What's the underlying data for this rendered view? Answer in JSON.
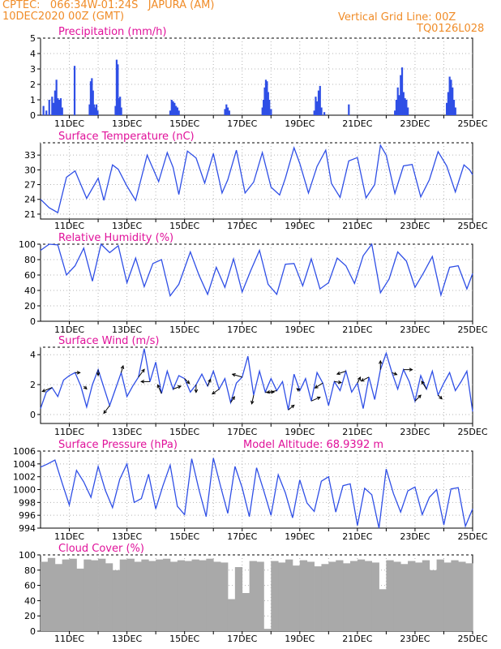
{
  "header": {
    "line1_left": "CPTEC:   066:34W-01:24S   JAPURA (AM)",
    "line2_left": "10DEC2020 00Z (GMT)",
    "line1_right": "Vertical Grid Line: 00Z",
    "line2_right": "TQ0126L028"
  },
  "colors": {
    "header": "#f08c28",
    "title": "#e0119a",
    "line": "#2f4fe6",
    "cloud": "#a9a9a9",
    "grid": "#b4b4b4",
    "arrow": "#000000"
  },
  "x_tick_labels": [
    "11DEC",
    "13DEC",
    "15DEC",
    "17DEC",
    "19DEC",
    "21DEC",
    "23DEC",
    "25DEC"
  ],
  "x_axis": {
    "start": "2020-12-10T00Z",
    "end": "2020-12-25T00Z"
  },
  "chart_data": [
    {
      "id": "precip",
      "type": "bar",
      "title": "Precipitation (mm/h)",
      "ylim": [
        0,
        5
      ],
      "yticks": [
        0,
        1,
        2,
        3,
        4,
        5
      ],
      "grid": true,
      "x": [
        10.1,
        10.2,
        10.3,
        10.4,
        10.45,
        10.5,
        10.55,
        10.6,
        10.65,
        10.7,
        10.75,
        11.18,
        11.7,
        11.74,
        11.78,
        11.82,
        11.86,
        11.9,
        11.94,
        11.98,
        12.6,
        12.64,
        12.68,
        12.72,
        12.76,
        12.8,
        14.5,
        14.55,
        14.6,
        14.65,
        14.7,
        14.75,
        14.8,
        16.4,
        16.45,
        16.5,
        16.55,
        17.7,
        17.74,
        17.78,
        17.82,
        17.86,
        17.9,
        17.94,
        18.0,
        19.5,
        19.55,
        19.6,
        19.65,
        19.7,
        19.75,
        19.85,
        20.7,
        22.3,
        22.35,
        22.4,
        22.45,
        22.5,
        22.55,
        22.6,
        22.65,
        22.7,
        22.75,
        24.1,
        24.15,
        24.2,
        24.25,
        24.3,
        24.35,
        24.4
      ],
      "values": [
        0.6,
        0.3,
        1.0,
        1.2,
        0.8,
        1.6,
        2.3,
        1.1,
        1.0,
        1.1,
        0.5,
        3.2,
        0.7,
        2.2,
        2.4,
        1.6,
        0.7,
        0.5,
        0.7,
        0.3,
        0.6,
        3.6,
        3.3,
        1.1,
        1.2,
        0.5,
        0.3,
        1.0,
        0.9,
        0.8,
        0.6,
        0.5,
        0.3,
        0.4,
        0.7,
        0.5,
        0.3,
        0.5,
        1.0,
        1.8,
        2.3,
        2.2,
        1.5,
        1.0,
        0.4,
        0.3,
        1.2,
        0.9,
        1.6,
        1.9,
        0.5,
        0.2,
        0.7,
        0.3,
        1.0,
        1.8,
        1.3,
        2.6,
        3.1,
        1.5,
        1.1,
        1.0,
        0.5,
        0.8,
        1.5,
        2.5,
        2.3,
        1.8,
        1.0,
        0.5
      ]
    },
    {
      "id": "temp",
      "type": "line",
      "title": "Surface Temperature (nC)",
      "ylim": [
        20,
        35.5
      ],
      "yticks": [
        21,
        24,
        27,
        30,
        33
      ],
      "grid": true,
      "x": [
        10.0,
        10.3,
        10.6,
        10.9,
        11.2,
        11.6,
        12.0,
        12.2,
        12.5,
        12.7,
        13.0,
        13.3,
        13.7,
        14.1,
        14.4,
        14.6,
        14.8,
        15.1,
        15.4,
        15.7,
        16.0,
        16.3,
        16.5,
        16.8,
        17.1,
        17.4,
        17.7,
        18.0,
        18.3,
        18.5,
        18.8,
        19.0,
        19.3,
        19.6,
        19.9,
        20.1,
        20.4,
        20.7,
        21.0,
        21.3,
        21.6,
        21.8,
        22.0,
        22.3,
        22.6,
        22.9,
        23.2,
        23.5,
        23.8,
        24.1,
        24.4,
        24.7,
        24.9,
        25.0
      ],
      "values": [
        24.0,
        22.3,
        21.3,
        28.5,
        29.8,
        24.2,
        28.3,
        23.8,
        31.0,
        30.1,
        26.7,
        23.8,
        33.0,
        27.6,
        33.5,
        30.5,
        25.0,
        33.8,
        32.4,
        27.3,
        33.3,
        25.3,
        28.0,
        34.0,
        25.3,
        27.5,
        33.5,
        26.5,
        24.9,
        28.3,
        34.5,
        31.3,
        25.3,
        30.7,
        34.0,
        27.2,
        24.4,
        31.8,
        32.5,
        24.3,
        27.0,
        35.0,
        33.0,
        25.2,
        30.8,
        31.1,
        24.5,
        28.0,
        33.7,
        30.8,
        25.5,
        31.0,
        30.0,
        29.0
      ]
    },
    {
      "id": "rh",
      "type": "line",
      "title": "Relative Humidity (%)",
      "ylim": [
        0,
        100
      ],
      "yticks": [
        0,
        20,
        40,
        60,
        80,
        100
      ],
      "grid": true,
      "x": [
        10.0,
        10.3,
        10.6,
        10.9,
        11.2,
        11.5,
        11.8,
        12.1,
        12.4,
        12.7,
        13.0,
        13.3,
        13.6,
        13.9,
        14.2,
        14.5,
        14.8,
        15.2,
        15.5,
        15.8,
        16.1,
        16.4,
        16.7,
        17.0,
        17.3,
        17.6,
        17.9,
        18.2,
        18.5,
        18.8,
        19.1,
        19.4,
        19.7,
        20.0,
        20.3,
        20.6,
        20.9,
        21.2,
        21.5,
        21.8,
        22.1,
        22.4,
        22.7,
        23.0,
        23.3,
        23.6,
        23.9,
        24.2,
        24.5,
        24.8,
        25.0
      ],
      "values": [
        92,
        100,
        99,
        60,
        72,
        95,
        52,
        100,
        89,
        98,
        50,
        82,
        45,
        75,
        80,
        33,
        48,
        90,
        60,
        35,
        70,
        44,
        81,
        38,
        66,
        92,
        48,
        35,
        74,
        75,
        46,
        81,
        42,
        50,
        82,
        72,
        49,
        85,
        100,
        37,
        55,
        90,
        78,
        44,
        63,
        84,
        34,
        70,
        72,
        42,
        62
      ]
    },
    {
      "id": "wind",
      "type": "line",
      "title": "Surface Wind (m/s)",
      "ylim": [
        -0.6,
        4.5
      ],
      "yticks": [
        0,
        2,
        4
      ],
      "grid": true,
      "x": [
        10.0,
        10.2,
        10.4,
        10.6,
        10.8,
        11.0,
        11.2,
        11.4,
        11.6,
        11.8,
        12.0,
        12.2,
        12.4,
        12.6,
        12.8,
        13.0,
        13.2,
        13.4,
        13.6,
        13.8,
        14.0,
        14.2,
        14.4,
        14.6,
        14.8,
        15.0,
        15.2,
        15.4,
        15.6,
        15.8,
        16.0,
        16.2,
        16.4,
        16.6,
        16.8,
        17.0,
        17.2,
        17.4,
        17.6,
        17.8,
        18.0,
        18.2,
        18.4,
        18.6,
        18.8,
        19.0,
        19.2,
        19.4,
        19.6,
        19.8,
        20.0,
        20.2,
        20.4,
        20.6,
        20.8,
        21.0,
        21.2,
        21.4,
        21.6,
        21.8,
        22.0,
        22.2,
        22.4,
        22.6,
        22.8,
        23.0,
        23.2,
        23.4,
        23.6,
        23.8,
        24.0,
        24.2,
        24.4,
        24.6,
        24.8,
        25.0
      ],
      "values": [
        0.4,
        1.5,
        1.8,
        1.2,
        2.3,
        2.6,
        2.8,
        1.9,
        0.5,
        2.0,
        3.0,
        1.8,
        0.6,
        1.7,
        2.8,
        1.2,
        1.9,
        2.5,
        4.4,
        2.2,
        3.5,
        1.4,
        2.9,
        1.7,
        2.6,
        2.4,
        1.5,
        2.0,
        2.7,
        1.9,
        2.9,
        1.7,
        2.4,
        0.8,
        2.1,
        2.5,
        3.9,
        1.3,
        2.9,
        1.5,
        2.4,
        1.6,
        2.2,
        0.3,
        2.7,
        1.6,
        2.4,
        0.9,
        2.8,
        2.1,
        0.6,
        2.2,
        1.6,
        2.9,
        1.5,
        2.1,
        0.4,
        2.5,
        1.0,
        3.0,
        4.1,
        2.8,
        1.7,
        3.0,
        2.2,
        0.9,
        2.6,
        1.7,
        2.9,
        1.3,
        2.1,
        2.8,
        1.6,
        2.2,
        2.9,
        0.2
      ],
      "vectors": {
        "x": [
          10.4,
          11.2,
          11.5,
          12.0,
          12.4,
          12.8,
          13.4,
          13.8,
          14.2,
          14.6,
          15.0,
          15.4,
          15.8,
          16.2,
          16.6,
          17.0,
          17.4,
          17.8,
          18.2,
          18.6,
          19.0,
          19.4,
          19.8,
          20.2,
          20.6,
          21.0,
          21.4,
          21.8,
          22.2,
          22.6,
          23.0,
          23.4,
          23.8
        ],
        "u": [
          -1.0,
          0.5,
          0.3,
          0.0,
          -0.6,
          0.2,
          0.6,
          -0.9,
          -0.4,
          0.8,
          0.5,
          0.0,
          0.3,
          -0.7,
          0.4,
          -1.0,
          -0.2,
          0.9,
          -1.0,
          0.6,
          -0.3,
          0.9,
          -0.8,
          0.7,
          -0.9,
          0.3,
          -0.8,
          0.0,
          0.5,
          0.9,
          0.6,
          -0.5,
          0.4
        ],
        "v": [
          -0.4,
          0.0,
          -0.3,
          -0.6,
          -0.8,
          0.7,
          0.8,
          0.0,
          0.9,
          0.3,
          -0.5,
          -0.8,
          0.7,
          -0.5,
          0.6,
          0.3,
          -0.9,
          0.0,
          -0.2,
          0.5,
          0.2,
          0.4,
          -0.5,
          -0.1,
          -0.3,
          0.6,
          -0.4,
          0.9,
          -0.2,
          0.0,
          0.6,
          0.8,
          -0.4
        ]
      }
    },
    {
      "id": "press",
      "type": "line",
      "title": "Surface Pressure (hPa)",
      "annotation": "Model Altitude: 68.9392 m",
      "ylim": [
        994,
        1006
      ],
      "yticks": [
        994,
        996,
        998,
        1000,
        1002,
        1004,
        1006
      ],
      "grid": true,
      "x": [
        10.0,
        10.25,
        10.5,
        10.75,
        11.0,
        11.25,
        11.5,
        11.75,
        12.0,
        12.25,
        12.5,
        12.75,
        13.0,
        13.25,
        13.5,
        13.75,
        14.0,
        14.25,
        14.5,
        14.75,
        15.0,
        15.25,
        15.5,
        15.75,
        16.0,
        16.25,
        16.5,
        16.75,
        17.0,
        17.25,
        17.5,
        17.75,
        18.0,
        18.25,
        18.5,
        18.75,
        19.0,
        19.25,
        19.5,
        19.75,
        20.0,
        20.25,
        20.5,
        20.75,
        21.0,
        21.25,
        21.5,
        21.75,
        22.0,
        22.25,
        22.5,
        22.75,
        23.0,
        23.25,
        23.5,
        23.75,
        24.0,
        24.25,
        24.5,
        24.75,
        25.0
      ],
      "values": [
        1003.5,
        1004.0,
        1004.6,
        1001.0,
        997.6,
        1003.0,
        1001.2,
        998.8,
        1003.6,
        999.9,
        997.2,
        1001.6,
        1004.0,
        998.0,
        998.6,
        1002.4,
        997.0,
        1000.6,
        1003.8,
        997.4,
        996.1,
        1004.8,
        1000.0,
        995.8,
        1004.9,
        1000.5,
        996.3,
        1003.6,
        1000.3,
        995.8,
        1003.4,
        999.8,
        996.0,
        1002.3,
        999.5,
        995.6,
        1001.5,
        997.9,
        996.6,
        1001.3,
        1002.0,
        996.5,
        1000.6,
        1000.9,
        994.4,
        1000.2,
        999.2,
        994.0,
        1003.2,
        999.4,
        996.5,
        999.8,
        1000.4,
        996.1,
        998.8,
        1000.0,
        994.5,
        1000.1,
        1000.3,
        994.3,
        997.0
      ]
    },
    {
      "id": "cloud",
      "type": "bar",
      "title": "Cloud Cover (%)",
      "ylim": [
        0,
        100
      ],
      "yticks": [
        0,
        20,
        40,
        60,
        80,
        100
      ],
      "grid": true,
      "x": [
        10.0,
        10.25,
        10.5,
        10.75,
        11.0,
        11.25,
        11.5,
        11.75,
        12.0,
        12.25,
        12.5,
        12.75,
        13.0,
        13.25,
        13.5,
        13.75,
        14.0,
        14.25,
        14.5,
        14.75,
        15.0,
        15.25,
        15.5,
        15.75,
        16.0,
        16.25,
        16.5,
        16.75,
        17.0,
        17.25,
        17.5,
        17.75,
        18.0,
        18.25,
        18.5,
        18.75,
        19.0,
        19.25,
        19.5,
        19.75,
        20.0,
        20.25,
        20.5,
        20.75,
        21.0,
        21.25,
        21.5,
        21.75,
        22.0,
        22.25,
        22.5,
        22.75,
        23.0,
        23.25,
        23.5,
        23.75,
        24.0,
        24.25,
        24.5,
        24.75
      ],
      "values": [
        91,
        96,
        88,
        94,
        95,
        82,
        94,
        93,
        95,
        89,
        80,
        94,
        95,
        91,
        94,
        92,
        94,
        95,
        91,
        93,
        92,
        94,
        93,
        95,
        91,
        90,
        42,
        84,
        50,
        92,
        91,
        3,
        92,
        90,
        94,
        86,
        93,
        91,
        85,
        88,
        91,
        93,
        89,
        92,
        94,
        92,
        90,
        55,
        93,
        91,
        88,
        92,
        90,
        93,
        80,
        94,
        90,
        93,
        91,
        89
      ]
    }
  ]
}
